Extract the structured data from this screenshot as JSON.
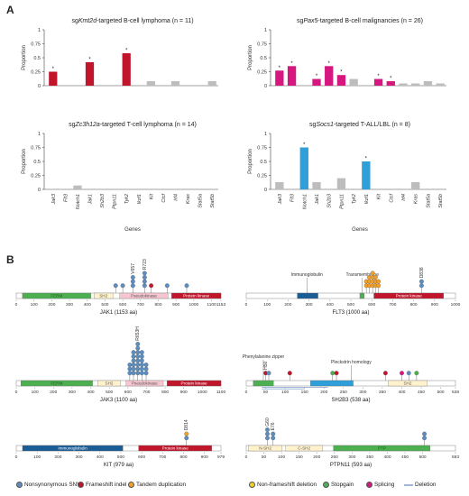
{
  "panels": {
    "A": "A",
    "B": "B"
  },
  "chart_data": [
    {
      "type": "bar",
      "title": "sgKmt2d-targeted B-cell lymphoma (n = 11)",
      "ylabel": "Proportion",
      "xlabel": "",
      "categories": [
        "Jak3",
        "Flt3",
        "Notch1",
        "Jak1",
        "Sh2b3",
        "Ptpn11",
        "Tyk2",
        "Ikzf1",
        "Kit",
        "Ctcf",
        "Irf4",
        "Kras",
        "Stat5a",
        "Stat5b"
      ],
      "values": [
        0.25,
        0,
        0,
        0.42,
        0,
        0,
        0.58,
        0,
        0.08,
        0,
        0.08,
        0,
        0,
        0.08
      ],
      "colors": [
        "#c0152b",
        "#c0152b",
        "#c0152b",
        "#c0152b",
        "#c0152b",
        "#c0152b",
        "#c0152b",
        "#c0152b",
        "#bdbdbd",
        "#bdbdbd",
        "#bdbdbd",
        "#bdbdbd",
        "#bdbdbd",
        "#bdbdbd"
      ],
      "significant": [
        true,
        false,
        false,
        true,
        false,
        false,
        true,
        false,
        false,
        false,
        false,
        false,
        false,
        false
      ],
      "ylim": [
        0,
        1
      ],
      "yticks": [
        "0",
        "0.25",
        "0.5",
        "0.75",
        "1"
      ],
      "grid": false
    },
    {
      "type": "bar",
      "title": "sgPax5-targeted B-cell malignancies (n = 26)",
      "ylabel": "Proportion",
      "xlabel": "",
      "categories": [
        "Jak3",
        "Flt3",
        "Notch1",
        "Jak1",
        "Sh2b3",
        "Ptpn11",
        "Tyk2",
        "Ikzf1",
        "Kit",
        "Ctcf",
        "Irf4",
        "Kras",
        "Stat5a",
        "Stat5b"
      ],
      "values": [
        0.27,
        0.35,
        0,
        0.12,
        0.35,
        0.19,
        0.12,
        0,
        0.12,
        0.08,
        0.04,
        0.04,
        0.08,
        0.04
      ],
      "colors": [
        "#d6177f",
        "#d6177f",
        "#bdbdbd",
        "#d6177f",
        "#d6177f",
        "#d6177f",
        "#bdbdbd",
        "#bdbdbd",
        "#d6177f",
        "#d6177f",
        "#bdbdbd",
        "#bdbdbd",
        "#bdbdbd",
        "#bdbdbd"
      ],
      "significant": [
        true,
        true,
        false,
        true,
        true,
        true,
        false,
        false,
        true,
        true,
        false,
        false,
        false,
        false
      ],
      "ylim": [
        0,
        1
      ],
      "yticks": [
        "0",
        "0.25",
        "0.5",
        "0.75",
        "1"
      ],
      "grid": false
    },
    {
      "type": "bar",
      "title": "sgZc3h12a-targeted T-cell lymphoma (n = 14)",
      "ylabel": "Proportion",
      "xlabel": "Genes",
      "categories": [
        "Jak3",
        "Flt3",
        "Notch1",
        "Jak1",
        "Sh2b3",
        "Ptpn11",
        "Tyk2",
        "Ikzf1",
        "Kit",
        "Ctcf",
        "Irf4",
        "Kras",
        "Stat5a",
        "Stat5b"
      ],
      "values": [
        0,
        0,
        0.07,
        0,
        0,
        0,
        0,
        0,
        0,
        0,
        0,
        0,
        0,
        0
      ],
      "colors": [
        "#bdbdbd",
        "#bdbdbd",
        "#bdbdbd",
        "#bdbdbd",
        "#bdbdbd",
        "#bdbdbd",
        "#bdbdbd",
        "#bdbdbd",
        "#bdbdbd",
        "#bdbdbd",
        "#bdbdbd",
        "#bdbdbd",
        "#bdbdbd",
        "#bdbdbd"
      ],
      "significant": [
        false,
        false,
        false,
        false,
        false,
        false,
        false,
        false,
        false,
        false,
        false,
        false,
        false,
        false
      ],
      "ylim": [
        0,
        1
      ],
      "yticks": [
        "0",
        "0.25",
        "0.5",
        "0.75",
        "1"
      ],
      "grid": false
    },
    {
      "type": "bar",
      "title": "sgSocs1-targeted T-ALL/LBL (n = 8)",
      "ylabel": "Proportion",
      "xlabel": "Genes",
      "categories": [
        "Jak3",
        "Flt3",
        "Notch1",
        "Jak1",
        "Sh2b3",
        "Ptpn11",
        "Tyk2",
        "Ikzf1",
        "Kit",
        "Ctcf",
        "Irf4",
        "Kras",
        "Stat5a",
        "Stat5b"
      ],
      "values": [
        0.13,
        0,
        0.75,
        0.13,
        0,
        0.2,
        0,
        0.5,
        0,
        0,
        0,
        0.13,
        0,
        0
      ],
      "colors": [
        "#bdbdbd",
        "#bdbdbd",
        "#2e9fd9",
        "#bdbdbd",
        "#bdbdbd",
        "#bdbdbd",
        "#bdbdbd",
        "#2e9fd9",
        "#bdbdbd",
        "#bdbdbd",
        "#bdbdbd",
        "#bdbdbd",
        "#bdbdbd",
        "#bdbdbd"
      ],
      "significant": [
        false,
        false,
        true,
        false,
        false,
        false,
        false,
        true,
        false,
        false,
        false,
        false,
        false,
        false
      ],
      "ylim": [
        0,
        1
      ],
      "yticks": [
        "0",
        "0.25",
        "0.5",
        "0.75",
        "1"
      ],
      "grid": false
    }
  ],
  "lollipops": [
    {
      "gene_label": "JAK1 (1153 aa)",
      "length": 1153,
      "ticks": [
        0,
        100,
        200,
        300,
        400,
        500,
        600,
        700,
        800,
        900,
        1000,
        1100,
        1153
      ],
      "domains": [
        {
          "name": "FERM",
          "start": 35,
          "end": 420,
          "color": "#4caf50",
          "text": "#1b5e20"
        },
        {
          "name": "SH2",
          "start": 438,
          "end": 544,
          "color": "#fff2cc",
          "text": "#555"
        },
        {
          "name": "Pseudokinase",
          "start": 583,
          "end": 855,
          "color": "#f7c6d0",
          "text": "#555"
        },
        {
          "name": "Protein kinase",
          "start": 875,
          "end": 1153,
          "color": "#c0152b",
          "text": "#ffffff"
        }
      ],
      "mutations": [
        {
          "pos": 560,
          "type": "snv",
          "count": 1
        },
        {
          "pos": 600,
          "type": "snv",
          "count": 1
        },
        {
          "pos": 657,
          "type": "snv",
          "count": 3,
          "label": "V657"
        },
        {
          "pos": 723,
          "type": "snv",
          "count": 4,
          "label": "R723"
        },
        {
          "pos": 760,
          "type": "frameshift",
          "count": 1
        },
        {
          "pos": 850,
          "type": "snv",
          "count": 1
        },
        {
          "pos": 960,
          "type": "snv",
          "count": 1
        }
      ],
      "region_lines": []
    },
    {
      "gene_label": "FLT3 (1000 aa)",
      "length": 1000,
      "ticks": [
        0,
        100,
        200,
        300,
        400,
        500,
        600,
        700,
        800,
        900,
        1000
      ],
      "domains": [
        {
          "name": "",
          "start": 244,
          "end": 343,
          "color": "#1a5c96",
          "text": "#fff"
        },
        {
          "name": "",
          "start": 543,
          "end": 564,
          "color": "#4caf50",
          "text": "#fff"
        },
        {
          "name": "Protein kinase",
          "start": 610,
          "end": 943,
          "color": "#c0152b",
          "text": "#ffffff"
        }
      ],
      "callouts": [
        {
          "text": "Immunoglobulin",
          "pos": 290,
          "dy": -22
        },
        {
          "text": "Transmembrane",
          "pos": 555,
          "dy": -22
        }
      ],
      "mutations": [
        {
          "pos": 574,
          "type": "duplication",
          "count": 2
        },
        {
          "pos": 588,
          "type": "duplication",
          "count": 3
        },
        {
          "pos": 604,
          "type": "duplication",
          "count": 4
        },
        {
          "pos": 618,
          "type": "duplication",
          "count": 3
        },
        {
          "pos": 632,
          "type": "duplication",
          "count": 2
        },
        {
          "pos": 838,
          "type": "snv",
          "count": 2,
          "label": "D838"
        }
      ],
      "region_lines": []
    },
    {
      "gene_label": "JAK3 (1100 aa)",
      "length": 1100,
      "ticks": [
        0,
        100,
        200,
        300,
        400,
        500,
        600,
        700,
        800,
        900,
        1000,
        1100
      ],
      "domains": [
        {
          "name": "FERM",
          "start": 25,
          "end": 410,
          "color": "#4caf50",
          "text": "#1b5e20"
        },
        {
          "name": "SH2",
          "start": 438,
          "end": 560,
          "color": "#fff2cc",
          "text": "#555"
        },
        {
          "name": "Pseudokinase",
          "start": 590,
          "end": 790,
          "color": "#f7c6d0",
          "text": "#555"
        },
        {
          "name": "Protein kinase",
          "start": 810,
          "end": 1100,
          "color": "#c0152b",
          "text": "#ffffff"
        }
      ],
      "mutations": [
        {
          "pos": 610,
          "type": "snv",
          "count": 3
        },
        {
          "pos": 630,
          "type": "snv",
          "count": 6
        },
        {
          "pos": 653,
          "type": "snv",
          "count": 8,
          "label": "R653H"
        },
        {
          "pos": 675,
          "type": "snv",
          "count": 6
        },
        {
          "pos": 698,
          "type": "snv",
          "count": 3
        }
      ],
      "region_lines": []
    },
    {
      "gene_label": "SH2B3 (538 aa)",
      "length": 538,
      "ticks": [
        0,
        50,
        100,
        150,
        200,
        250,
        300,
        350,
        400,
        450,
        500,
        538
      ],
      "domains": [
        {
          "name": "",
          "start": 18,
          "end": 70,
          "color": "#4caf50",
          "text": "#fff"
        },
        {
          "name": "",
          "start": 165,
          "end": 275,
          "color": "#2e9fd9",
          "text": "#fff"
        },
        {
          "name": "SH2",
          "start": 365,
          "end": 465,
          "color": "#fff2cc",
          "text": "#555"
        }
      ],
      "callouts": [
        {
          "text": "Phenylalanine zipper",
          "pos": 44,
          "dy": -28
        },
        {
          "text": "Pleckstrin homology",
          "pos": 270,
          "dy": -22
        }
      ],
      "mutations": [
        {
          "pos": 50,
          "type": "frameshift",
          "count": 1,
          "label": "H50"
        },
        {
          "pos": 58,
          "type": "snv",
          "count": 1
        },
        {
          "pos": 112,
          "type": "frameshift",
          "count": 1
        },
        {
          "pos": 222,
          "type": "stopgain",
          "count": 1
        },
        {
          "pos": 232,
          "type": "frameshift",
          "count": 1
        },
        {
          "pos": 358,
          "type": "frameshift",
          "count": 1
        },
        {
          "pos": 400,
          "type": "splicing",
          "count": 1
        },
        {
          "pos": 418,
          "type": "snv",
          "count": 1
        },
        {
          "pos": 438,
          "type": "stopgain",
          "count": 1
        }
      ],
      "region_lines": [
        {
          "start": 40,
          "end": 210,
          "row": 0
        },
        {
          "start": 40,
          "end": 150,
          "row": 1
        }
      ]
    },
    {
      "gene_label": "KIT (979 aa)",
      "length": 979,
      "ticks": [
        0,
        100,
        200,
        300,
        400,
        500,
        600,
        700,
        800,
        900,
        979
      ],
      "domains": [
        {
          "name": "Immunoglobulin",
          "start": 30,
          "end": 510,
          "color": "#1a5c96",
          "text": "#ffffff"
        },
        {
          "name": "Protein kinase",
          "start": 585,
          "end": 935,
          "color": "#c0152b",
          "text": "#ffffff"
        }
      ],
      "mutations": [
        {
          "pos": 814,
          "type": "snv",
          "count": 2,
          "label": "D814",
          "top": "duplication"
        }
      ],
      "region_lines": []
    },
    {
      "gene_label": "PTPN11 (593 aa)",
      "length": 593,
      "ticks": [
        0,
        50,
        100,
        150,
        200,
        250,
        300,
        350,
        400,
        450,
        500,
        593
      ],
      "domains": [
        {
          "name": "N-SH2",
          "start": 6,
          "end": 102,
          "color": "#fff2cc",
          "text": "#555"
        },
        {
          "name": "C-SH2",
          "start": 112,
          "end": 216,
          "color": "#fff2cc",
          "text": "#555"
        },
        {
          "name": "PTP",
          "start": 247,
          "end": 521,
          "color": "#4caf50",
          "text": "#1b5e20"
        }
      ],
      "mutations": [
        {
          "pos": 60,
          "type": "snv",
          "count": 3,
          "label": "G60"
        },
        {
          "pos": 76,
          "type": "snv",
          "count": 2,
          "label": "E76"
        },
        {
          "pos": 505,
          "type": "snv",
          "count": 2
        }
      ],
      "region_lines": []
    }
  ],
  "legend": [
    {
      "label": "Nonsynonymous SNV",
      "kind": "dot",
      "color": "#5b8ebf"
    },
    {
      "label": "Frameshift indel",
      "kind": "dot",
      "color": "#c0152b"
    },
    {
      "label": "Tandem duplication",
      "kind": "dot",
      "color": "#f0a02a"
    },
    {
      "label": "Non-frameshift deletion",
      "kind": "dot",
      "color": "#f2cf2a"
    },
    {
      "label": "Stopgain",
      "kind": "dot",
      "color": "#4caf50"
    },
    {
      "label": "Splicing",
      "kind": "dot",
      "color": "#d6177f"
    },
    {
      "label": "Deletion",
      "kind": "line",
      "color": "#9fb8d8"
    }
  ]
}
